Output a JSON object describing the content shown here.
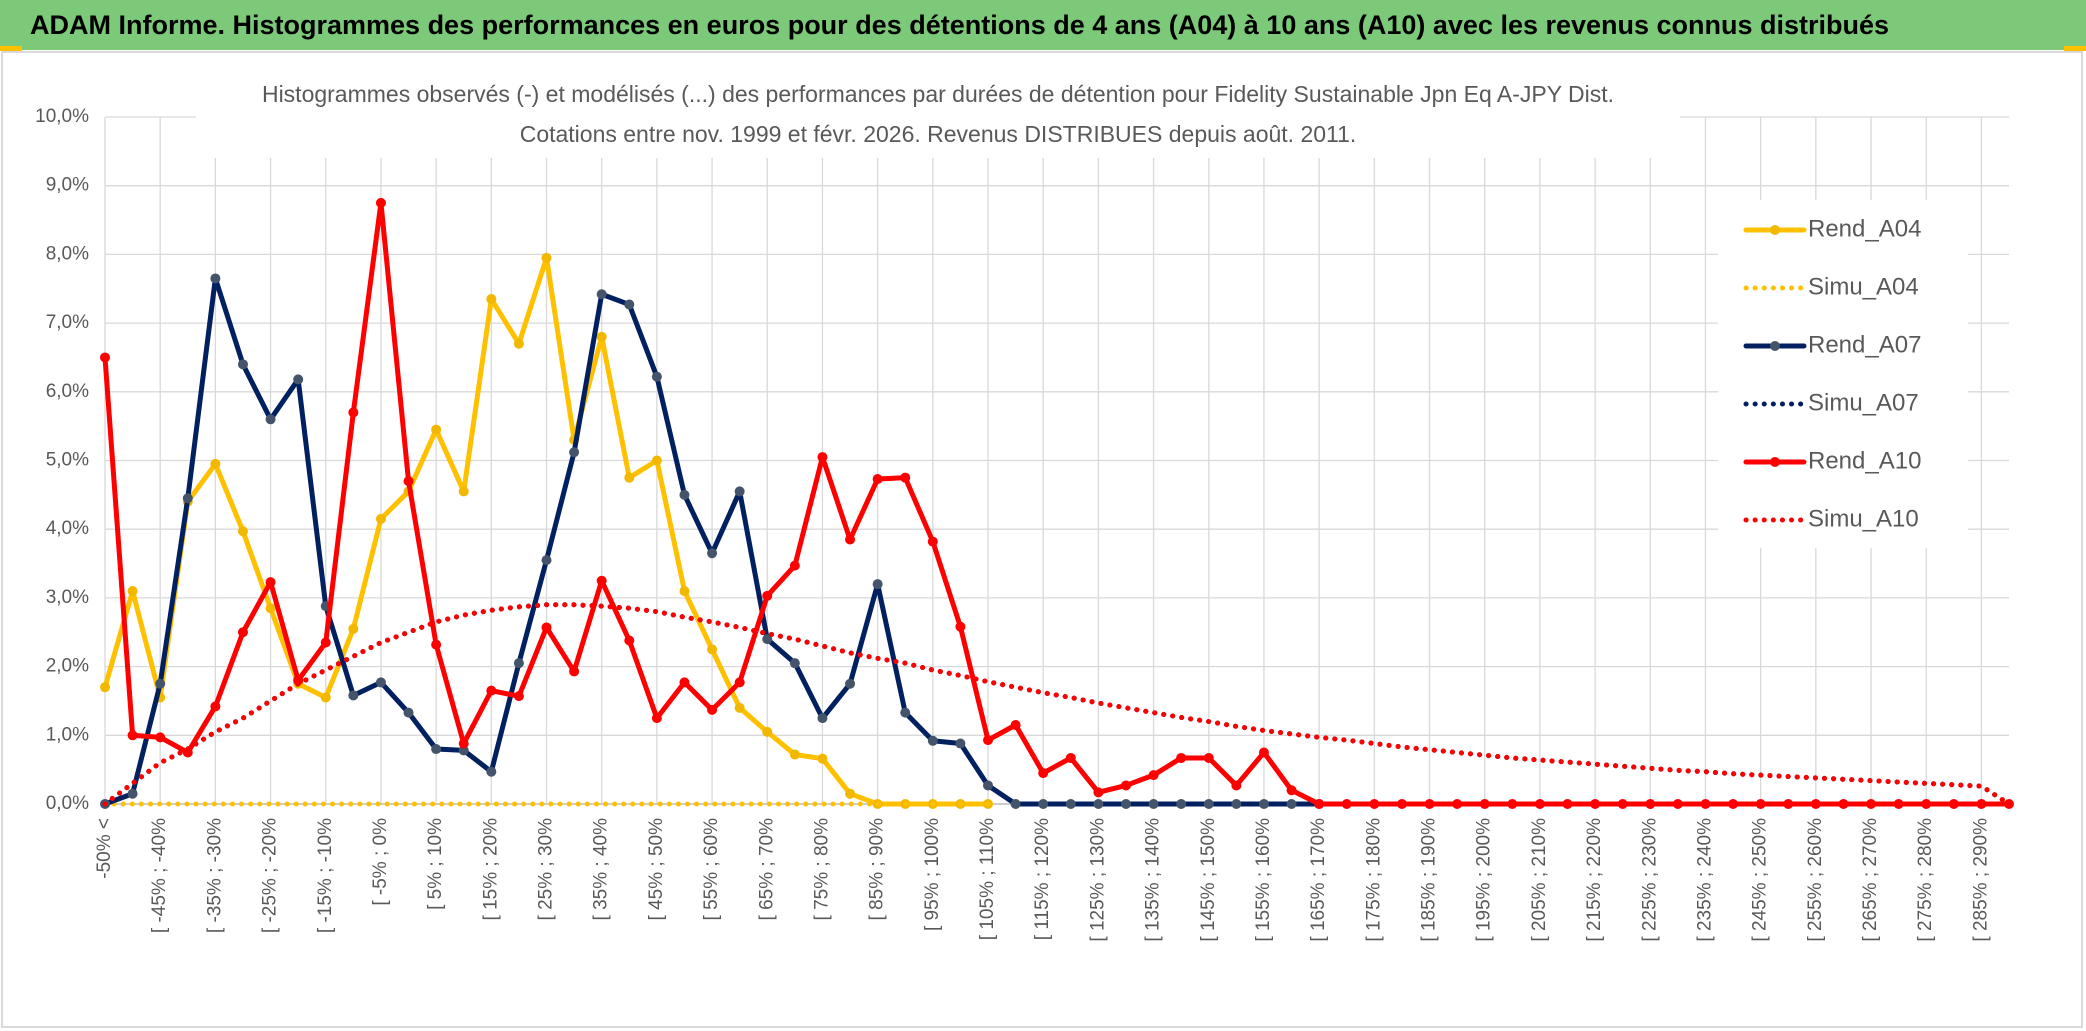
{
  "chart_data": {
    "type": "line",
    "title": "ADAM Informe. Histogrammes des performances en euros pour des détentions de 4 ans (A04) à 10 ans (A10) avec les revenus connus distribués",
    "subtitle": [
      "Histogrammes observés (-) et modélisés (...) des performances par durées de détention pour Fidelity Sustainable Jpn Eq A-JPY Dist.",
      "Cotations entre nov. 1999 et févr. 2026. Revenus DISTRIBUES depuis août. 2011."
    ],
    "categories": [
      "-50% <",
      null,
      "[ -45% ; -40%",
      null,
      "[ -35% ; -30%",
      null,
      "[ -25% ; -20%",
      null,
      "[ -15% ; -10%",
      null,
      "[ -5% ; 0%",
      null,
      "[ 5% ; 10%",
      null,
      "[ 15% ; 20%",
      null,
      "[ 25% ; 30%",
      null,
      "[ 35% ; 40%",
      null,
      "[ 45% ; 50%",
      null,
      "[ 55% ; 60%",
      null,
      "[ 65% ; 70%",
      null,
      "[ 75% ; 80%",
      null,
      "[ 85% ; 90%",
      null,
      "[ 95% ; 100%",
      null,
      "[ 105% ; 110%",
      null,
      "[ 115% ; 120%",
      null,
      "[ 125% ; 130%",
      null,
      "[ 135% ; 140%",
      null,
      "[ 145% ; 150%",
      null,
      "[ 155% ; 160%",
      null,
      "[ 165% ; 170%",
      null,
      "[ 175% ; 180%",
      null,
      "[ 185% ; 190%",
      null,
      "[ 195% ; 200%",
      null,
      "[ 205% ; 210%",
      null,
      "[ 215% ; 220%",
      null,
      "[ 225% ; 230%",
      null,
      "[ 235% ; 240%",
      null,
      "[ 245% ; 250%",
      null,
      "[ 255% ; 260%",
      null,
      "[ 265% ; 270%",
      null,
      "[ 275% ; 280%",
      null,
      "[ 285% ; 290%",
      null
    ],
    "series": [
      {
        "name": "Rend_A04",
        "color": "#ffc000",
        "marker_color": "#f2b800",
        "style": "solid",
        "markers": true,
        "values": [
          1.7,
          3.1,
          1.55,
          4.4,
          4.95,
          3.97,
          2.85,
          1.75,
          1.55,
          2.55,
          4.15,
          4.55,
          5.45,
          4.55,
          7.35,
          6.7,
          7.95,
          5.3,
          6.8,
          4.75,
          5.0,
          3.1,
          2.25,
          1.4,
          1.05,
          0.72,
          0.66,
          0.15,
          0,
          0,
          0,
          0,
          0,
          null,
          null,
          null,
          null,
          null,
          null,
          null,
          null,
          null,
          null,
          null,
          null,
          null,
          null,
          null,
          null,
          null,
          null,
          null,
          null,
          null,
          null,
          null,
          null,
          null,
          null,
          null,
          null,
          null,
          null,
          null,
          null,
          null,
          null,
          null,
          null,
          null
        ]
      },
      {
        "name": "Simu_A04",
        "color": "#ffc000",
        "style": "dotted",
        "markers": false,
        "values": [
          0,
          0,
          0,
          0,
          0,
          0,
          0,
          0,
          0,
          0,
          0,
          0,
          0,
          0,
          0,
          0,
          0,
          0,
          0,
          0,
          0,
          0,
          0,
          0,
          0,
          0,
          0,
          0,
          0,
          0,
          0,
          0,
          0,
          null,
          null,
          null,
          null,
          null,
          null,
          null,
          null,
          null,
          null,
          null,
          null,
          null,
          null,
          null,
          null,
          null,
          null,
          null,
          null,
          null,
          null,
          null,
          null,
          null,
          null,
          null,
          null,
          null,
          null,
          null,
          null,
          null,
          null,
          null,
          null,
          null
        ]
      },
      {
        "name": "Rend_A07",
        "color": "#002060",
        "marker_color": "#44546a",
        "style": "solid",
        "markers": true,
        "values": [
          0,
          0.15,
          1.75,
          4.45,
          7.65,
          6.4,
          5.6,
          6.18,
          2.88,
          1.58,
          1.77,
          1.33,
          0.8,
          0.78,
          0.47,
          2.05,
          3.55,
          5.12,
          7.42,
          7.27,
          6.22,
          4.5,
          3.65,
          4.55,
          2.4,
          2.05,
          1.25,
          1.75,
          3.2,
          1.33,
          0.92,
          0.88,
          0.27,
          0,
          0,
          0,
          0,
          0,
          0,
          0,
          0,
          0,
          0,
          0,
          0,
          null,
          null,
          null,
          null,
          null,
          null,
          null,
          null,
          null,
          null,
          null,
          null,
          null,
          null,
          null,
          null,
          null,
          null,
          null,
          null,
          null,
          null,
          null,
          null,
          null
        ]
      },
      {
        "name": "Simu_A07",
        "color": "#002060",
        "style": "dotted",
        "markers": false,
        "values": [
          0,
          0.3,
          0.6,
          0.8,
          1.05,
          1.25,
          1.5,
          1.75,
          1.95,
          2.15,
          2.35,
          2.5,
          2.65,
          2.75,
          2.82,
          2.87,
          2.9,
          2.9,
          2.88,
          2.85,
          2.8,
          2.72,
          2.65,
          2.57,
          2.48,
          2.4,
          2.3,
          2.2,
          2.12,
          2.05,
          1.95,
          1.87,
          1.78,
          1.7,
          1.62,
          1.55,
          1.47,
          1.4,
          1.33,
          1.26,
          1.2,
          1.13,
          1.07,
          1.02,
          0.97,
          0.93,
          0.88,
          0.83,
          0.79,
          0.75,
          0.71,
          0.67,
          0.64,
          0.61,
          0.58,
          0.55,
          0.52,
          0.49,
          0.47,
          0.44,
          0.42,
          0.4,
          0.38,
          0.36,
          0.34,
          0.32,
          0.3,
          0.28,
          0.26,
          0
        ]
      },
      {
        "name": "Rend_A10",
        "color": "#ff0000",
        "marker_color": "#ff0000",
        "style": "solid",
        "markers": true,
        "values": [
          6.5,
          1.0,
          0.97,
          0.75,
          1.42,
          2.5,
          3.23,
          1.8,
          2.35,
          5.7,
          8.75,
          4.7,
          2.32,
          0.88,
          1.65,
          1.57,
          2.57,
          1.93,
          3.25,
          2.38,
          1.25,
          1.77,
          1.37,
          1.77,
          3.03,
          3.47,
          5.05,
          3.85,
          4.73,
          4.75,
          3.82,
          2.58,
          0.93,
          1.15,
          0.45,
          0.67,
          0.17,
          0.27,
          0.42,
          0.67,
          0.67,
          0.27,
          0.75,
          0.2,
          0,
          0,
          0,
          0,
          0,
          0,
          0,
          0,
          0,
          0,
          0,
          0,
          0,
          0,
          0,
          0,
          0,
          0,
          0,
          0,
          0,
          0,
          0,
          0,
          0,
          0
        ]
      },
      {
        "name": "Simu_A10",
        "color": "#ff0000",
        "style": "dotted",
        "markers": false,
        "values": [
          0,
          0.3,
          0.6,
          0.8,
          1.05,
          1.25,
          1.5,
          1.75,
          1.95,
          2.15,
          2.35,
          2.5,
          2.65,
          2.75,
          2.82,
          2.87,
          2.9,
          2.9,
          2.88,
          2.85,
          2.8,
          2.72,
          2.65,
          2.57,
          2.48,
          2.4,
          2.3,
          2.2,
          2.12,
          2.05,
          1.95,
          1.87,
          1.78,
          1.7,
          1.62,
          1.55,
          1.47,
          1.4,
          1.33,
          1.26,
          1.2,
          1.13,
          1.07,
          1.02,
          0.97,
          0.93,
          0.88,
          0.83,
          0.79,
          0.75,
          0.71,
          0.67,
          0.64,
          0.61,
          0.58,
          0.55,
          0.52,
          0.49,
          0.47,
          0.44,
          0.42,
          0.4,
          0.38,
          0.36,
          0.34,
          0.32,
          0.3,
          0.28,
          0.26,
          0
        ]
      }
    ],
    "ylim": [
      0,
      10
    ],
    "yticks": [
      {
        "value": 0,
        "label": "0,0%"
      },
      {
        "value": 1,
        "label": "1,0%"
      },
      {
        "value": 2,
        "label": "2,0%"
      },
      {
        "value": 3,
        "label": "3,0%"
      },
      {
        "value": 4,
        "label": "4,0%"
      },
      {
        "value": 5,
        "label": "5,0%"
      },
      {
        "value": 6,
        "label": "6,0%"
      },
      {
        "value": 7,
        "label": "7,0%"
      },
      {
        "value": 8,
        "label": "8,0%"
      },
      {
        "value": 9,
        "label": "9,0%"
      },
      {
        "value": 10,
        "label": "10,0%"
      }
    ],
    "grid": true,
    "legend": "right"
  }
}
